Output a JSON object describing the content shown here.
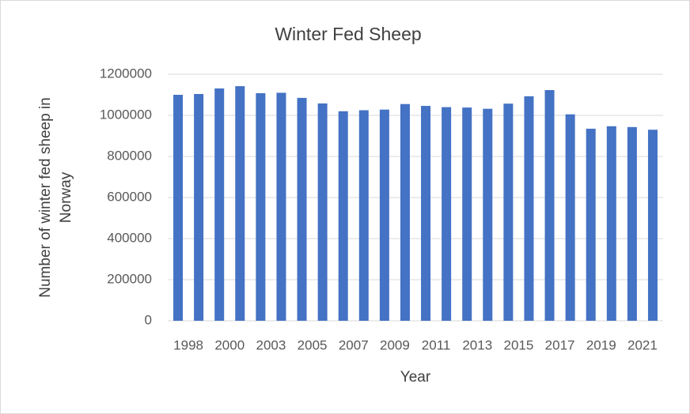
{
  "chart_data": {
    "type": "bar",
    "title": "Winter Fed Sheep",
    "x_label": "Year",
    "y_label": [
      "Number of winter fed sheep in",
      "Norway"
    ],
    "categories": [
      "1998",
      null,
      "2000",
      null,
      "2003",
      null,
      "2005",
      null,
      "2007",
      null,
      "2009",
      null,
      "2011",
      null,
      "2013",
      null,
      "2015",
      null,
      "2017",
      null,
      "2019",
      null,
      "2021",
      null
    ],
    "values": [
      1100000,
      1104000,
      1131000,
      1142000,
      1108000,
      1110000,
      1085000,
      1058000,
      1020000,
      1025000,
      1028000,
      1055000,
      1046000,
      1040000,
      1038000,
      1032000,
      1057000,
      1093000,
      1123000,
      1005000,
      935000,
      947000,
      943000,
      930000
    ],
    "color": "#4472c4",
    "ylim": [
      0,
      1200000
    ],
    "yticks": [
      0,
      200000,
      400000,
      600000,
      800000,
      1000000,
      1200000
    ],
    "grid": true
  }
}
